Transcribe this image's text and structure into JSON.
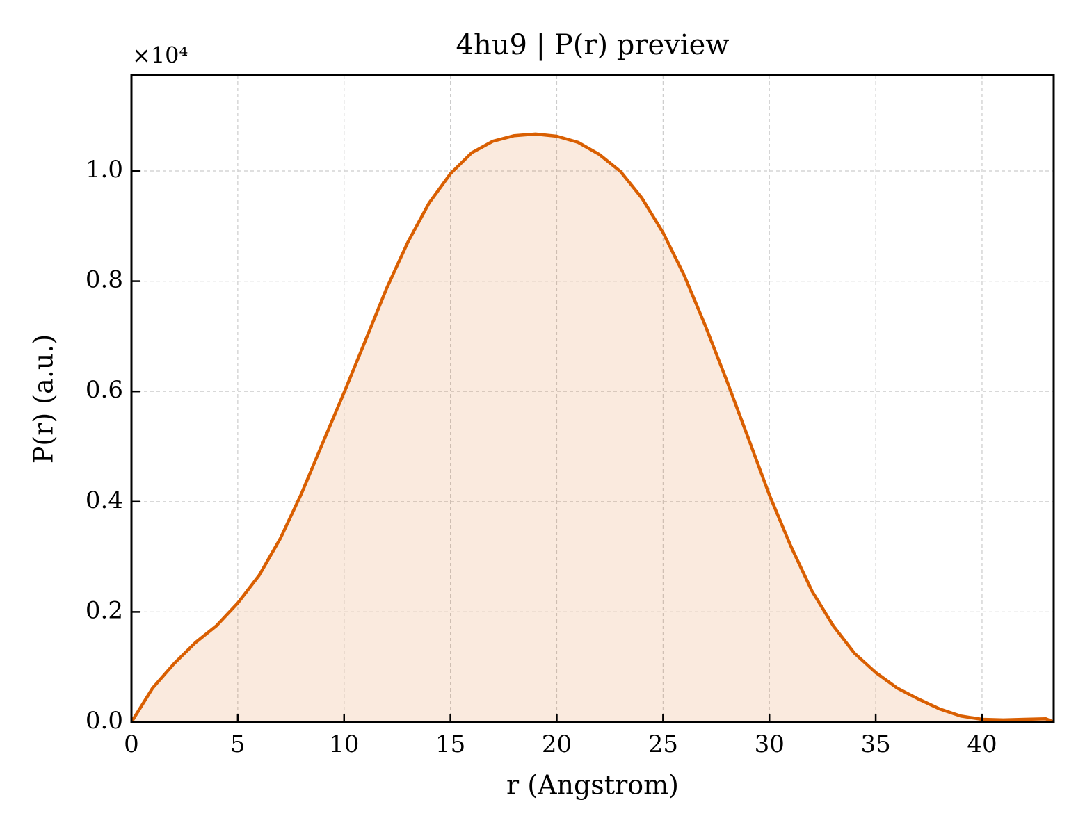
{
  "chart_data": {
    "type": "area_line",
    "title": "4hu9 | P(r) preview",
    "x_label": "r (Angstrom)",
    "y_label": "P(r) (a.u.)",
    "y_offset_label": "×10⁴",
    "color": "#d95f02",
    "grid": true,
    "x": [
      0,
      1,
      2,
      3,
      4,
      5,
      6,
      7,
      8,
      9,
      10,
      11,
      12,
      13,
      14,
      15,
      16,
      17,
      18,
      19,
      20,
      21,
      22,
      23,
      24,
      25,
      26,
      27,
      28,
      29,
      30,
      31,
      32,
      33,
      34,
      35,
      36,
      37,
      38,
      39,
      40,
      41,
      42,
      43,
      43.37
    ],
    "values": [
      0,
      0.062,
      0.106,
      0.144,
      0.175,
      0.216,
      0.266,
      0.333,
      0.415,
      0.507,
      0.598,
      0.692,
      0.787,
      0.871,
      0.942,
      0.995,
      1.033,
      1.054,
      1.064,
      1.067,
      1.063,
      1.052,
      1.03,
      0.999,
      0.951,
      0.888,
      0.81,
      0.718,
      0.619,
      0.516,
      0.412,
      0.32,
      0.238,
      0.175,
      0.125,
      0.09,
      0.062,
      0.042,
      0.024,
      0.011,
      0.005,
      0.004,
      0.005,
      0.006,
      0
    ],
    "xlim": [
      0,
      43.37
    ],
    "ylim": [
      0,
      1.174
    ],
    "xticks": [
      0,
      5,
      10,
      15,
      20,
      25,
      30,
      35,
      40
    ],
    "yticks": [
      {
        "value": 0,
        "label": "0.0"
      },
      0.2,
      0.4,
      0.6,
      0.8,
      {
        "value": 1,
        "label": "1.0"
      }
    ]
  }
}
